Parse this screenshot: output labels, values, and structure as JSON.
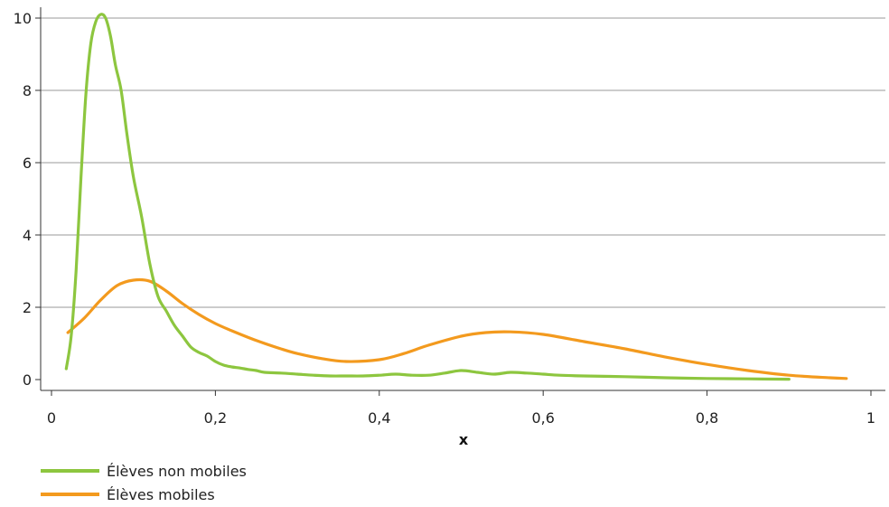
{
  "chart_data": {
    "type": "line",
    "xlabel": "x",
    "ylabel": "",
    "xlim": [
      0,
      1
    ],
    "ylim": [
      0,
      10
    ],
    "x_ticks": [
      {
        "value": 0,
        "label": "0"
      },
      {
        "value": 0.2,
        "label": "0,2"
      },
      {
        "value": 0.4,
        "label": "0,4"
      },
      {
        "value": 0.6,
        "label": "0,6"
      },
      {
        "value": 0.8,
        "label": "0,8"
      },
      {
        "value": 1,
        "label": "1"
      }
    ],
    "y_ticks": [
      {
        "value": 0,
        "label": "0"
      },
      {
        "value": 2,
        "label": "2"
      },
      {
        "value": 4,
        "label": "4"
      },
      {
        "value": 6,
        "label": "6"
      },
      {
        "value": 8,
        "label": "8"
      },
      {
        "value": 10,
        "label": "10"
      }
    ],
    "grid": "horizontal",
    "legend_position": "bottom-left",
    "series": [
      {
        "name": "Élèves non mobiles",
        "color": "#8DC63F",
        "x": [
          0.018,
          0.024,
          0.03,
          0.036,
          0.042,
          0.048,
          0.054,
          0.06,
          0.066,
          0.072,
          0.078,
          0.085,
          0.092,
          0.1,
          0.11,
          0.12,
          0.13,
          0.14,
          0.15,
          0.16,
          0.17,
          0.18,
          0.19,
          0.2,
          0.21,
          0.22,
          0.23,
          0.24,
          0.25,
          0.26,
          0.28,
          0.3,
          0.32,
          0.34,
          0.36,
          0.38,
          0.4,
          0.42,
          0.44,
          0.46,
          0.48,
          0.5,
          0.52,
          0.54,
          0.56,
          0.58,
          0.6,
          0.62,
          0.65,
          0.7,
          0.75,
          0.8,
          0.85,
          0.9
        ],
        "y": [
          0.3,
          1.2,
          3.0,
          5.6,
          7.9,
          9.3,
          9.9,
          10.1,
          10.0,
          9.5,
          8.7,
          8.0,
          6.8,
          5.6,
          4.5,
          3.2,
          2.3,
          1.9,
          1.5,
          1.2,
          0.9,
          0.75,
          0.65,
          0.5,
          0.4,
          0.35,
          0.32,
          0.28,
          0.25,
          0.2,
          0.18,
          0.15,
          0.12,
          0.1,
          0.1,
          0.1,
          0.12,
          0.15,
          0.12,
          0.12,
          0.18,
          0.25,
          0.2,
          0.15,
          0.2,
          0.18,
          0.15,
          0.12,
          0.1,
          0.08,
          0.05,
          0.03,
          0.02,
          0.01
        ]
      },
      {
        "name": "Élèves mobiles",
        "color": "#F39A1E",
        "x": [
          0.02,
          0.04,
          0.06,
          0.08,
          0.1,
          0.12,
          0.14,
          0.16,
          0.18,
          0.2,
          0.22,
          0.25,
          0.28,
          0.3,
          0.33,
          0.36,
          0.4,
          0.43,
          0.46,
          0.5,
          0.53,
          0.56,
          0.6,
          0.65,
          0.7,
          0.75,
          0.8,
          0.85,
          0.9,
          0.95,
          0.97
        ],
        "y": [
          1.3,
          1.7,
          2.2,
          2.6,
          2.75,
          2.72,
          2.45,
          2.1,
          1.8,
          1.55,
          1.35,
          1.08,
          0.85,
          0.72,
          0.58,
          0.5,
          0.55,
          0.72,
          0.95,
          1.2,
          1.3,
          1.32,
          1.25,
          1.05,
          0.85,
          0.62,
          0.42,
          0.25,
          0.12,
          0.05,
          0.03
        ]
      }
    ]
  }
}
